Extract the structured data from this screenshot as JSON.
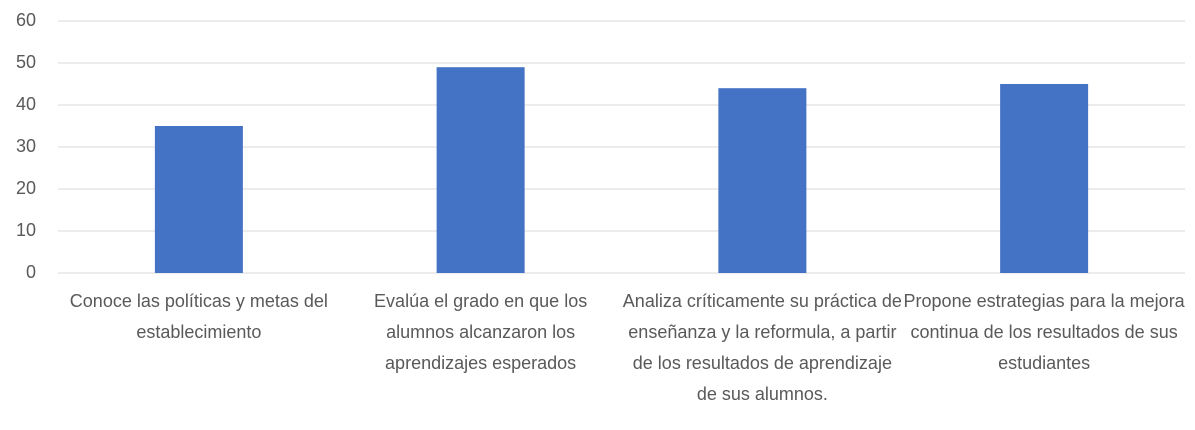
{
  "chart_data": {
    "type": "bar",
    "categories": [
      "Conoce las políticas y metas del establecimiento",
      "Evalúa el grado en que los alumnos alcanzaron los aprendizajes esperados",
      "Analiza críticamente su práctica de enseñanza y la reformula, a partir de los resultados de aprendizaje de sus alumnos.",
      "Propone estrategias para la mejora continua de los resultados de sus estudiantes"
    ],
    "values": [
      35,
      49,
      44,
      45
    ],
    "color": "#4472c4",
    "ylim": [
      0,
      60
    ],
    "yticks": [
      0,
      10,
      20,
      30,
      40,
      50,
      60
    ],
    "grid": true
  }
}
